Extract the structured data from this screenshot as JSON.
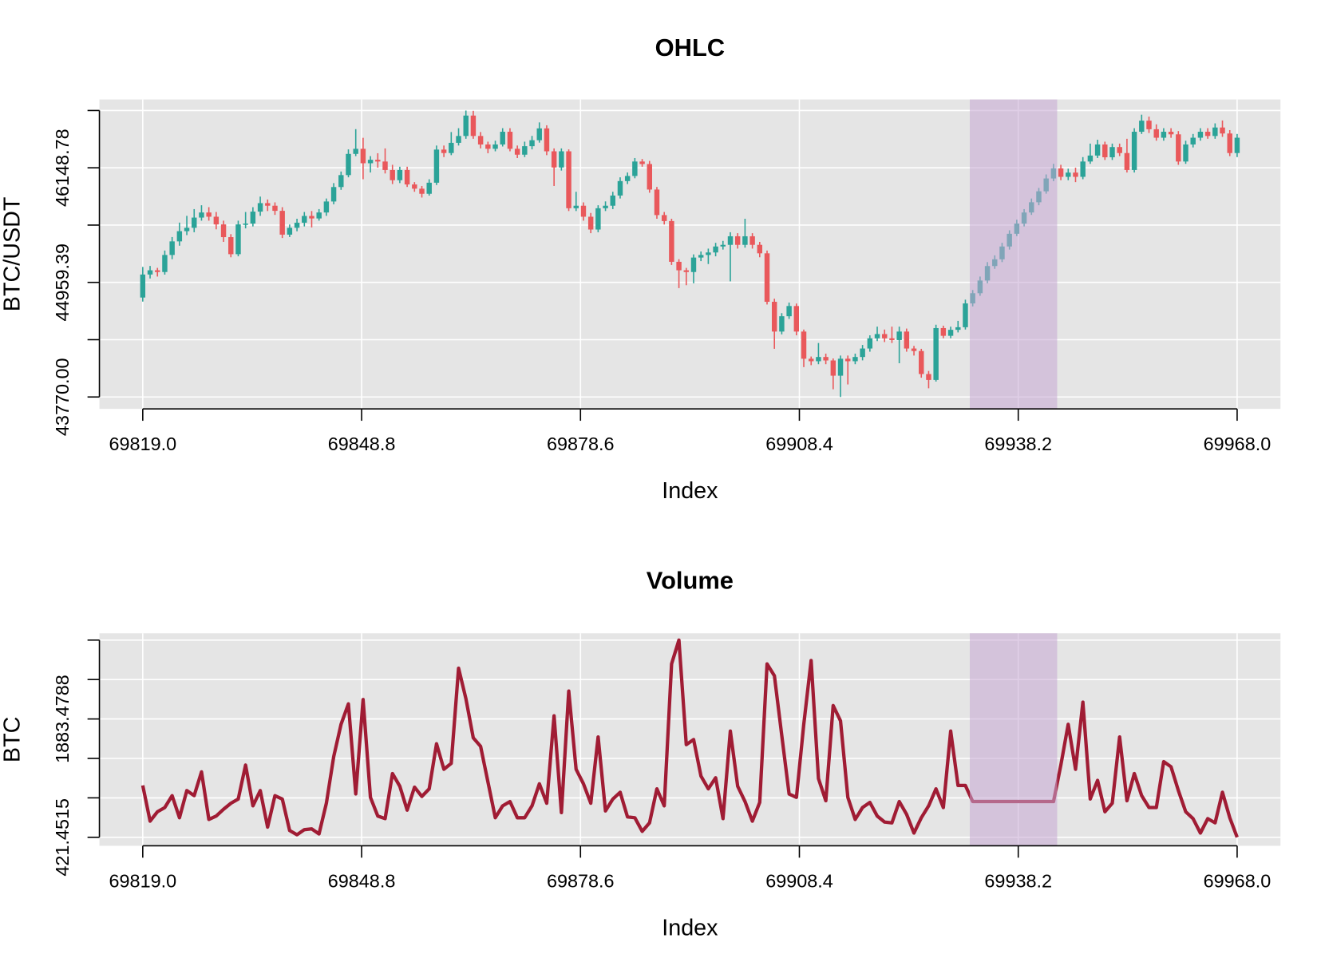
{
  "chart_data": [
    {
      "type": "candlestick",
      "title": "OHLC",
      "xlabel": "Index",
      "ylabel": "BTC/USDT",
      "up_color": "#2ba398",
      "down_color": "#e9585b",
      "background": "#e5e5e5",
      "grid": true,
      "grid_color": "#ffffff",
      "xlim": [
        69813.1,
        69973.9
      ],
      "ylim": [
        43646.5,
        46858.2
      ],
      "xticks": [
        {
          "value": 69819,
          "label": "69819.0"
        },
        69848.8,
        69878.6,
        69908.4,
        69938.2,
        {
          "value": 69968,
          "label": "69968.0"
        }
      ],
      "yticks": [
        {
          "value": 43770,
          "label": "43770.00"
        },
        44959.39,
        46148.78
      ],
      "yminor_ticks": [
        44364.695,
        45554.085,
        46743.475
      ],
      "highlight": {
        "from": 69931.6,
        "to": 69943.5,
        "color": "rgba(198,168,212,0.55)"
      },
      "x": [
        69819,
        69820,
        69821,
        69822,
        69823,
        69824,
        69825,
        69826,
        69827,
        69828,
        69829,
        69830,
        69831,
        69832,
        69833,
        69834,
        69835,
        69836,
        69837,
        69838,
        69839,
        69840,
        69841,
        69842,
        69843,
        69844,
        69845,
        69846,
        69847,
        69848,
        69849,
        69850,
        69851,
        69852,
        69853,
        69854,
        69855,
        69856,
        69857,
        69858,
        69859,
        69860,
        69861,
        69862,
        69863,
        69864,
        69865,
        69866,
        69867,
        69868,
        69869,
        69870,
        69871,
        69872,
        69873,
        69874,
        69875,
        69876,
        69877,
        69878,
        69879,
        69880,
        69881,
        69882,
        69883,
        69884,
        69885,
        69886,
        69887,
        69888,
        69889,
        69890,
        69891,
        69892,
        69893,
        69894,
        69895,
        69896,
        69897,
        69898,
        69899,
        69900,
        69901,
        69902,
        69903,
        69904,
        69905,
        69906,
        69907,
        69908,
        69909,
        69910,
        69911,
        69912,
        69913,
        69914,
        69915,
        69916,
        69917,
        69918,
        69919,
        69920,
        69921,
        69922,
        69923,
        69924,
        69925,
        69926,
        69927,
        69928,
        69929,
        69930,
        69931,
        69932,
        69933,
        69934,
        69935,
        69936,
        69937,
        69938,
        69939,
        69940,
        69941,
        69942,
        69943,
        69944,
        69945,
        69946,
        69947,
        69948,
        69949,
        69950,
        69951,
        69952,
        69953,
        69954,
        69955,
        69956,
        69957,
        69958,
        69959,
        69960,
        69961,
        69962,
        69963,
        69964,
        69965,
        69966,
        69967,
        69968
      ],
      "open": [
        44802,
        45041,
        45085,
        45067,
        45244,
        45385,
        45491,
        45526,
        45632,
        45685,
        45641,
        45561,
        45429,
        45252,
        45561,
        45570,
        45694,
        45782,
        45755,
        45702,
        45455,
        45526,
        45579,
        45649,
        45623,
        45685,
        45799,
        45949,
        46073,
        46293,
        46346,
        46196,
        46232,
        46214,
        46126,
        46020,
        46126,
        45976,
        45932,
        45879,
        45994,
        46338,
        46302,
        46408,
        46479,
        46691,
        46479,
        46391,
        46346,
        46391,
        46523,
        46346,
        46285,
        46373,
        46435,
        46558,
        46320,
        46152,
        46320,
        45729,
        45755,
        45641,
        45508,
        45729,
        45755,
        45861,
        46011,
        46064,
        46214,
        46188,
        45923,
        45658,
        45596,
        45173,
        45085,
        45067,
        45217,
        45244,
        45270,
        45332,
        45349,
        45438,
        45349,
        45438,
        45349,
        45261,
        44758,
        44449,
        44608,
        44714,
        44449,
        44167,
        44141,
        44185,
        44149,
        43991,
        44167,
        44141,
        44185,
        44273,
        44379,
        44423,
        44379,
        44361,
        44449,
        44273,
        44247,
        44008,
        43947,
        44485,
        44405,
        44467,
        44494,
        44741,
        44847,
        44979,
        45129,
        45199,
        45332,
        45464,
        45570,
        45685,
        45791,
        45905,
        46038,
        46143,
        46055,
        46099,
        46055,
        46214,
        46276,
        46391,
        46258,
        46364,
        46302,
        46126,
        46523,
        46638,
        46549,
        46461,
        46523,
        46496,
        46214,
        46391,
        46461,
        46523,
        46479,
        46567,
        46505,
        46302
      ],
      "close": [
        45041,
        45085,
        45067,
        45244,
        45385,
        45491,
        45526,
        45632,
        45685,
        45641,
        45561,
        45429,
        45252,
        45561,
        45570,
        45694,
        45782,
        45755,
        45702,
        45455,
        45526,
        45579,
        45649,
        45623,
        45685,
        45799,
        45949,
        46073,
        46293,
        46346,
        46196,
        46232,
        46214,
        46126,
        46020,
        46126,
        45976,
        45932,
        45879,
        45994,
        46338,
        46302,
        46408,
        46479,
        46691,
        46479,
        46391,
        46346,
        46391,
        46523,
        46346,
        46285,
        46373,
        46435,
        46558,
        46320,
        46152,
        46320,
        45729,
        45755,
        45641,
        45508,
        45729,
        45755,
        45861,
        46011,
        46064,
        46214,
        46188,
        45923,
        45658,
        45596,
        45173,
        45085,
        45067,
        45217,
        45244,
        45270,
        45332,
        45349,
        45438,
        45349,
        45438,
        45349,
        45261,
        44758,
        44449,
        44608,
        44714,
        44449,
        44167,
        44141,
        44185,
        44149,
        43991,
        44167,
        44141,
        44185,
        44273,
        44379,
        44423,
        44379,
        44361,
        44449,
        44273,
        44247,
        44008,
        43947,
        44485,
        44405,
        44467,
        44494,
        44741,
        44847,
        44979,
        45129,
        45199,
        45332,
        45464,
        45570,
        45685,
        45791,
        45905,
        46038,
        46143,
        46055,
        46099,
        46055,
        46214,
        46276,
        46391,
        46258,
        46364,
        46302,
        46126,
        46523,
        46638,
        46549,
        46461,
        46523,
        46496,
        46214,
        46391,
        46461,
        46523,
        46479,
        46567,
        46505,
        46302,
        46461
      ],
      "high": [
        45120,
        45130,
        45110,
        45290,
        45430,
        45580,
        45650,
        45720,
        45760,
        45740,
        45690,
        45600,
        45460,
        45600,
        45690,
        45740,
        45850,
        45820,
        45790,
        45740,
        45560,
        45620,
        45690,
        45700,
        45720,
        45830,
        45990,
        46110,
        46340,
        46550,
        46460,
        46270,
        46300,
        46350,
        46180,
        46160,
        46160,
        46000,
        45960,
        46030,
        46380,
        46380,
        46520,
        46560,
        46743,
        46740,
        46520,
        46420,
        46430,
        46560,
        46560,
        46380,
        46420,
        46480,
        46620,
        46590,
        46350,
        46350,
        46340,
        45900,
        45790,
        45680,
        45760,
        45800,
        45900,
        46050,
        46100,
        46250,
        46240,
        46220,
        45950,
        45690,
        45620,
        45200,
        45110,
        45250,
        45280,
        45310,
        45370,
        45390,
        45480,
        45470,
        45620,
        45470,
        45380,
        45290,
        44790,
        44640,
        44750,
        44740,
        44470,
        44190,
        44330,
        44220,
        44170,
        44200,
        44200,
        44220,
        44310,
        44410,
        44500,
        44470,
        44500,
        44500,
        44480,
        44300,
        44270,
        44040,
        44520,
        44510,
        44500,
        44560,
        44780,
        44880,
        45020,
        45170,
        45240,
        45370,
        45500,
        45610,
        45720,
        45830,
        45940,
        46080,
        46190,
        46180,
        46140,
        46150,
        46260,
        46400,
        46440,
        46420,
        46400,
        46400,
        46450,
        46560,
        46700,
        46680,
        46600,
        46560,
        46560,
        46530,
        46430,
        46500,
        46560,
        46560,
        46610,
        46640,
        46540,
        46500
      ],
      "low": [
        44760,
        45000,
        45020,
        45040,
        45200,
        45340,
        45450,
        45480,
        45600,
        45600,
        45510,
        45380,
        45220,
        45230,
        45520,
        45540,
        45650,
        45700,
        45660,
        45420,
        45430,
        45490,
        45540,
        45530,
        45600,
        45650,
        45770,
        45920,
        46050,
        46270,
        46030,
        46100,
        46150,
        46090,
        45980,
        45990,
        45950,
        45900,
        45840,
        45860,
        45970,
        46260,
        46280,
        46380,
        46450,
        46450,
        46350,
        46300,
        46320,
        46370,
        46320,
        46250,
        46260,
        46340,
        46410,
        46280,
        45960,
        46120,
        45700,
        45700,
        45600,
        45470,
        45480,
        45700,
        45720,
        45830,
        45980,
        46040,
        46160,
        45890,
        45620,
        45560,
        45140,
        44900,
        44930,
        44950,
        45180,
        45150,
        45230,
        45300,
        44970,
        45310,
        45320,
        45310,
        45220,
        44730,
        44270,
        44420,
        44580,
        44410,
        44080,
        44100,
        44110,
        44110,
        43850,
        43770,
        43900,
        44110,
        44150,
        44240,
        44350,
        44340,
        44330,
        44120,
        44240,
        44200,
        43970,
        43860,
        43930,
        44380,
        44380,
        44440,
        44470,
        44710,
        44820,
        44950,
        45100,
        45170,
        45300,
        45440,
        45540,
        45660,
        45760,
        45880,
        46010,
        46020,
        46020,
        46000,
        46030,
        46190,
        46250,
        46230,
        46230,
        46270,
        46100,
        46100,
        46500,
        46510,
        46430,
        46430,
        46460,
        46180,
        46190,
        46360,
        46430,
        46450,
        46450,
        46470,
        46270,
        46260
      ]
    },
    {
      "type": "line",
      "title": "Volume",
      "xlabel": "Index",
      "ylabel": "BTC",
      "color": "#a01c34",
      "background": "#e5e5e5",
      "grid": true,
      "grid_color": "#ffffff",
      "xlim": [
        69813.1,
        69973.9
      ],
      "ylim": [
        316.4,
        2942.2
      ],
      "xticks": [
        {
          "value": 69819,
          "label": "69819.0"
        },
        69848.8,
        69878.6,
        69908.4,
        69938.2,
        {
          "value": 69968,
          "label": "69968.0"
        }
      ],
      "yticks": [
        421.4515,
        1883.4788
      ],
      "yminor_ticks": [
        908.7939,
        1396.1364,
        2370.8212,
        2858.1636
      ],
      "highlight": {
        "from": 69931.6,
        "to": 69943.5,
        "color": "rgba(198,168,212,0.55)"
      },
      "x": [
        69819,
        69820,
        69821,
        69822,
        69823,
        69824,
        69825,
        69826,
        69827,
        69828,
        69829,
        69830,
        69831,
        69832,
        69833,
        69834,
        69835,
        69836,
        69837,
        69838,
        69839,
        69840,
        69841,
        69842,
        69843,
        69844,
        69845,
        69846,
        69847,
        69848,
        69849,
        69850,
        69851,
        69852,
        69853,
        69854,
        69855,
        69856,
        69857,
        69858,
        69859,
        69860,
        69861,
        69862,
        69863,
        69864,
        69865,
        69866,
        69867,
        69868,
        69869,
        69870,
        69871,
        69872,
        69873,
        69874,
        69875,
        69876,
        69877,
        69878,
        69879,
        69880,
        69881,
        69882,
        69883,
        69884,
        69885,
        69886,
        69887,
        69888,
        69889,
        69890,
        69891,
        69892,
        69893,
        69894,
        69895,
        69896,
        69897,
        69898,
        69899,
        69900,
        69901,
        69902,
        69903,
        69904,
        69905,
        69906,
        69907,
        69908,
        69909,
        69910,
        69911,
        69912,
        69913,
        69914,
        69915,
        69916,
        69917,
        69918,
        69919,
        69920,
        69921,
        69922,
        69923,
        69924,
        69925,
        69926,
        69927,
        69928,
        69929,
        69930,
        69931,
        69932,
        69933,
        69934,
        69935,
        69936,
        69937,
        69938,
        69939,
        69940,
        69941,
        69942,
        69943,
        69944,
        69945,
        69946,
        69947,
        69948,
        69949,
        69950,
        69951,
        69952,
        69953,
        69954,
        69955,
        69956,
        69957,
        69958,
        69959,
        69960,
        69961,
        69962,
        69963,
        69964,
        69965,
        69966,
        69967,
        69968
      ],
      "values": [
        1062,
        621,
        737,
        789,
        936,
        663,
        999,
        936,
        1230,
        642,
        684,
        768,
        842,
        894,
        1314,
        810,
        999,
        547,
        936,
        894,
        505,
        453,
        516,
        526,
        463,
        842,
        1419,
        1818,
        2070,
        957,
        2123,
        915,
        684,
        652,
        1209,
        1052,
        757,
        1041,
        926,
        1020,
        1577,
        1262,
        1335,
        2511,
        2133,
        1650,
        1545,
        1104,
        663,
        810,
        863,
        663,
        663,
        810,
        1083,
        842,
        1923,
        726,
        2228,
        1262,
        1083,
        842,
        1661,
        747,
        894,
        978,
        673,
        663,
        495,
        600,
        1020,
        810,
        2564,
        2858.1636,
        1566,
        1629,
        1178,
        1020,
        1157,
        652,
        1734,
        1052,
        863,
        621,
        852,
        2564,
        2417,
        1682,
        957,
        915,
        1818,
        2606,
        1146,
        873,
        2049,
        1860,
        915,
        642,
        789,
        852,
        684,
        610,
        600,
        863,
        705,
        474,
        663,
        810,
        1020,
        789,
        1734,
        1062,
        1062,
        863,
        863,
        863,
        863,
        863,
        863,
        863,
        863,
        863,
        863,
        863,
        863,
        1314,
        1818,
        1262,
        2091,
        894,
        1125,
        737,
        842,
        1661,
        873,
        1209,
        936,
        789,
        789,
        1356,
        1293,
        999,
        737,
        652,
        474,
        652,
        600,
        978,
        663,
        421.4515
      ]
    }
  ]
}
